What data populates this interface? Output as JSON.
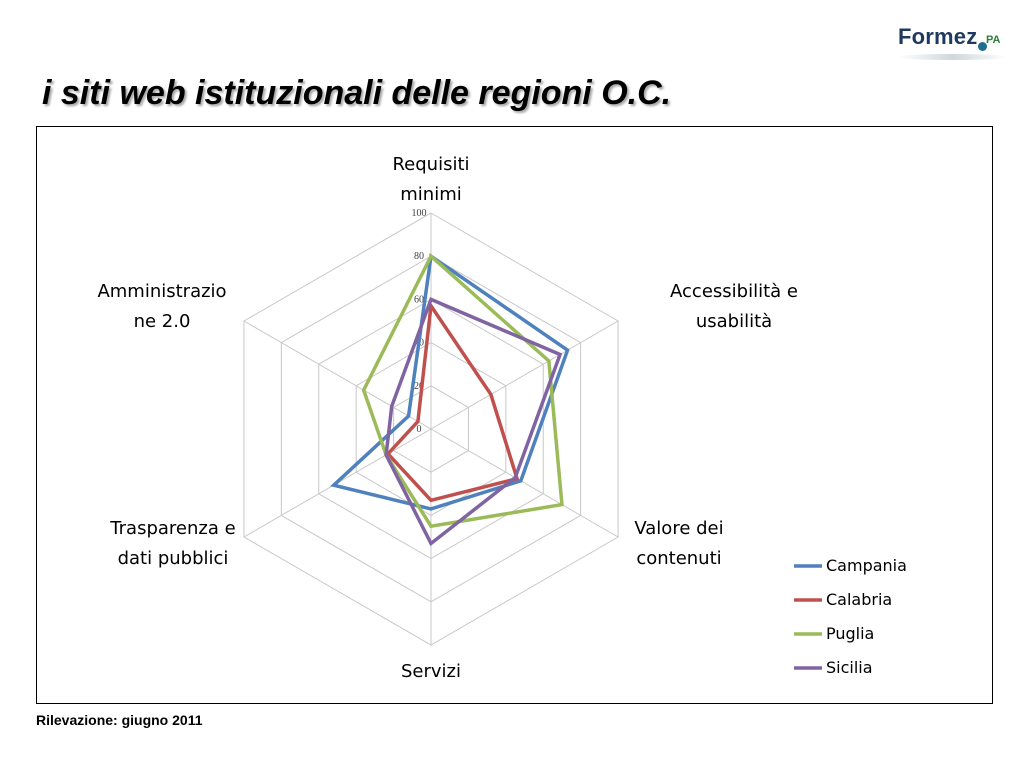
{
  "header": {
    "logo_text": "Formez",
    "logo_suffix": "PA",
    "title": "i siti web istituzionali delle regioni O.C."
  },
  "footer": {
    "note": "Rilevazione: giugno 2011"
  },
  "chart_data": {
    "type": "radar",
    "title": "",
    "axes": [
      [
        "Requisiti",
        "minimi"
      ],
      [
        "Accessibilità e",
        "usabilità"
      ],
      [
        "Valore dei",
        "contenuti"
      ],
      [
        "Servizi"
      ],
      [
        "Trasparenza e",
        "dati pubblici"
      ],
      [
        "Amministrazio",
        "ne 2.0"
      ]
    ],
    "rlim": [
      0,
      100
    ],
    "ticks": [
      "0",
      "20",
      "40",
      "60",
      "80",
      "100"
    ],
    "grid": true,
    "legend_position": "bottom-right",
    "series": [
      {
        "name": "Campania",
        "color": "#4f81bd",
        "values": [
          80,
          73,
          48,
          37,
          52,
          12
        ]
      },
      {
        "name": "Calabria",
        "color": "#c0504d",
        "values": [
          57,
          32,
          46,
          33,
          23,
          7
        ]
      },
      {
        "name": "Puglia",
        "color": "#9bbb59",
        "values": [
          80,
          63,
          70,
          45,
          24,
          36
        ]
      },
      {
        "name": "Sicilia",
        "color": "#8064a2",
        "values": [
          60,
          69,
          45,
          53,
          24,
          21
        ]
      }
    ]
  }
}
